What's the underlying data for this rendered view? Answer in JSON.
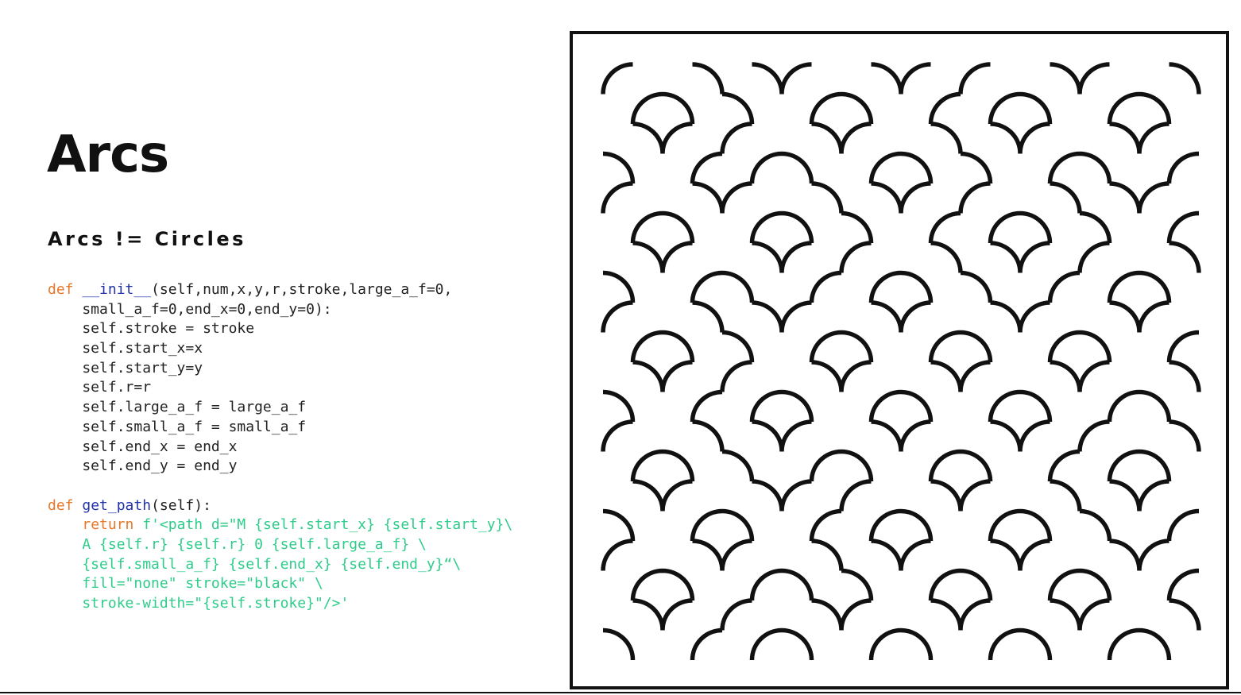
{
  "slide": {
    "title": "Arcs",
    "subtitle": "Arcs != Circles"
  },
  "code": {
    "lines": [
      [
        {
          "t": "def ",
          "c": "kw"
        },
        {
          "t": "__init__",
          "c": "fn"
        },
        {
          "t": "(self,num,x,y,r,stroke,large_a_f=0,",
          "c": ""
        }
      ],
      [
        {
          "t": "    small_a_f=0,end_x=0,end_y=0):",
          "c": ""
        }
      ],
      [
        {
          "t": "    self.stroke = stroke",
          "c": ""
        }
      ],
      [
        {
          "t": "    self.start_x=x",
          "c": ""
        }
      ],
      [
        {
          "t": "    self.start_y=y",
          "c": ""
        }
      ],
      [
        {
          "t": "    self.r=r",
          "c": ""
        }
      ],
      [
        {
          "t": "    self.large_a_f = large_a_f",
          "c": ""
        }
      ],
      [
        {
          "t": "    self.small_a_f = small_a_f",
          "c": ""
        }
      ],
      [
        {
          "t": "    self.end_x = end_x",
          "c": ""
        }
      ],
      [
        {
          "t": "    self.end_y = end_y",
          "c": ""
        }
      ],
      [
        {
          "t": "",
          "c": ""
        }
      ],
      [
        {
          "t": "def ",
          "c": "kw"
        },
        {
          "t": "get_path",
          "c": "fn"
        },
        {
          "t": "(self):",
          "c": ""
        }
      ],
      [
        {
          "t": "    ",
          "c": ""
        },
        {
          "t": "return",
          "c": "kw"
        },
        {
          "t": " f'<path d=\"M {self.start_x} {self.start_y}\\",
          "c": "str"
        }
      ],
      [
        {
          "t": "    A {self.r} {self.r} 0 {self.large_a_f} \\",
          "c": "str"
        }
      ],
      [
        {
          "t": "    {self.small_a_f} {self.end_x} {self.end_y}“\\",
          "c": "str"
        }
      ],
      [
        {
          "t": "    fill=\"none\" stroke=\"black\" \\",
          "c": "str"
        }
      ],
      [
        {
          "t": "    stroke-width=\"{self.stroke}\"/>'",
          "c": "str"
        }
      ]
    ]
  },
  "truchet": {
    "grid": 10,
    "stroke_color": "#111111",
    "background": "#ffffff",
    "orientations": [
      "0110100101",
      "1001011010",
      "0101100110",
      "1010011001",
      "0110101010",
      "1001010101",
      "0110101001",
      "1010010110",
      "0101101010",
      "1001010101"
    ]
  }
}
